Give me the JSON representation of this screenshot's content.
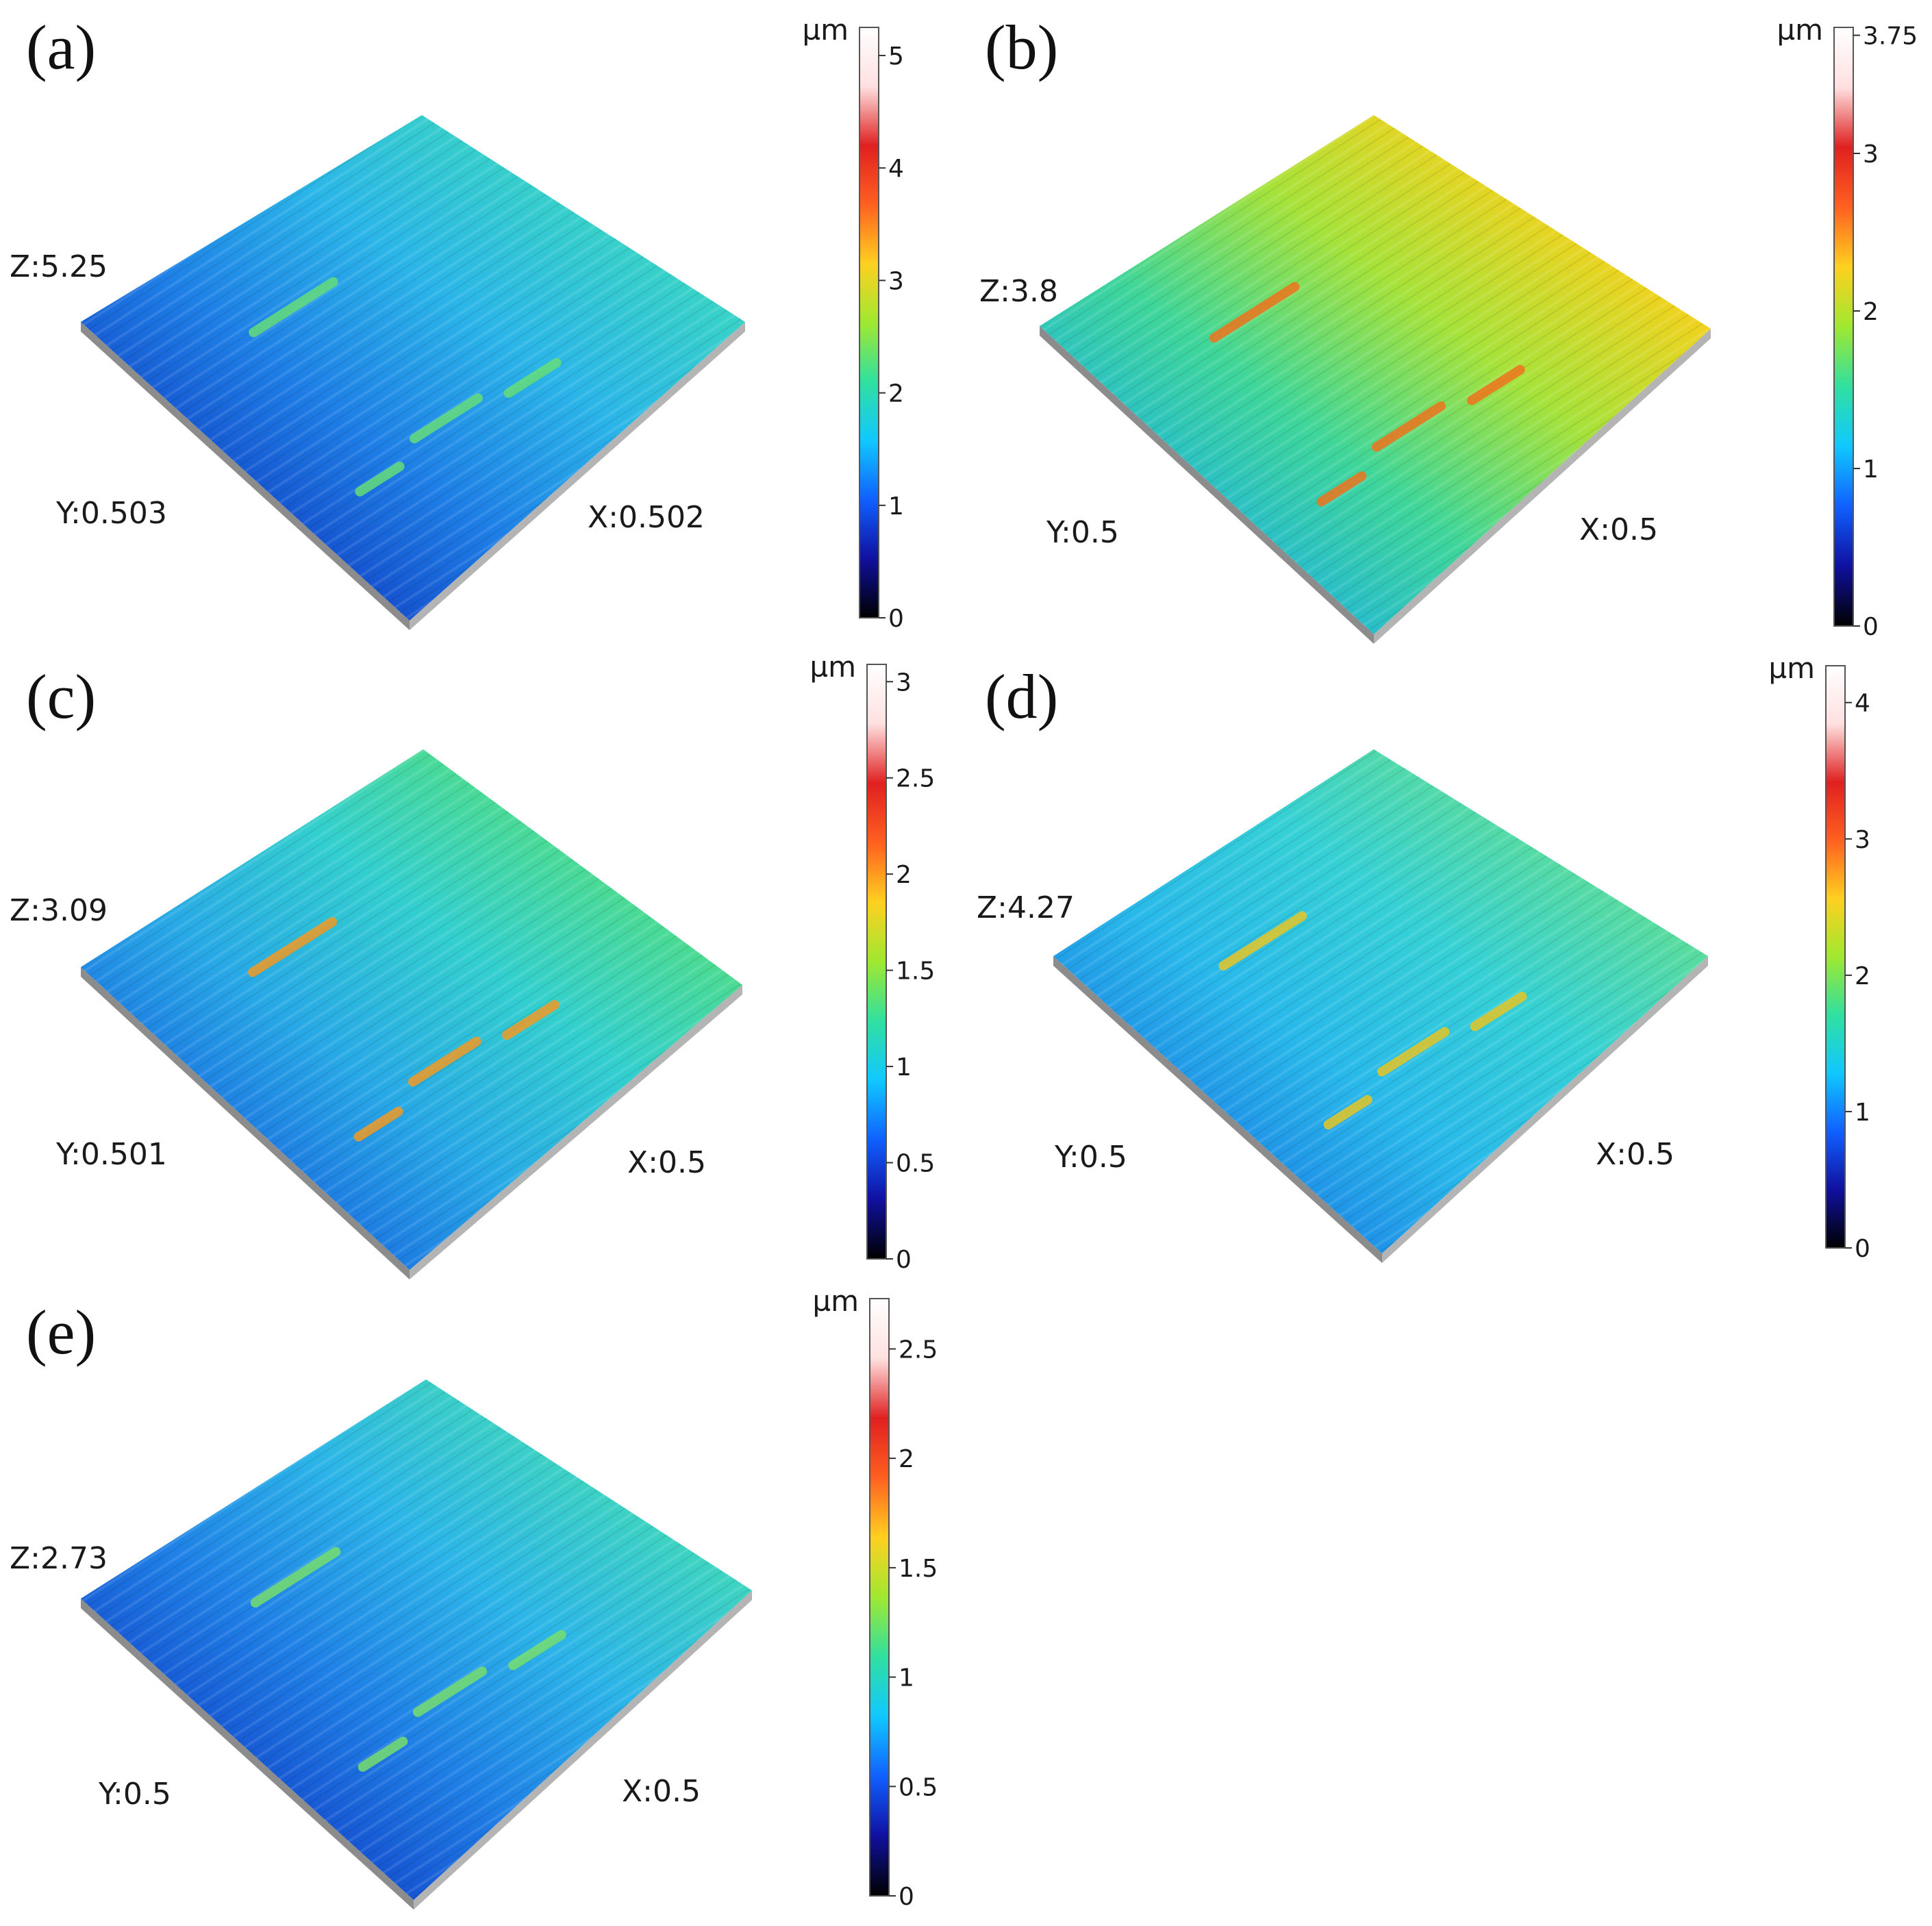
{
  "figure": {
    "panels": [
      {
        "key": "a",
        "letter": "(a)",
        "z_label": "Z:5.25",
        "y_label": "Y:0.503",
        "x_label": "X:0.502",
        "colorbar": {
          "unit": "µm",
          "max": 5.25,
          "ticks": [
            "5",
            "4",
            "3",
            "2",
            "1",
            "0"
          ],
          "tick_values": [
            5,
            4,
            3,
            2,
            1,
            0
          ]
        },
        "surface_palette": [
          "#0a2a9c",
          "#1246c8",
          "#1e7fe6",
          "#2bb6e8",
          "#39d3c6",
          "#66dd7a"
        ]
      },
      {
        "key": "b",
        "letter": "(b)",
        "z_label": "Z:3.8",
        "y_label": "Y:0.5",
        "x_label": "X:0.5",
        "colorbar": {
          "unit": "µm",
          "max": 3.8,
          "ticks": [
            "3.75",
            "3",
            "2",
            "1",
            "0"
          ],
          "tick_values": [
            3.75,
            3,
            2,
            1,
            0
          ]
        },
        "surface_palette": [
          "#1c7ad6",
          "#22b6d8",
          "#3fd69a",
          "#a6e23a",
          "#f2d21e",
          "#f0741e"
        ]
      },
      {
        "key": "c",
        "letter": "(c)",
        "z_label": "Z:3.09",
        "y_label": "Y:0.501",
        "x_label": "X:0.5",
        "colorbar": {
          "unit": "µm",
          "max": 3.09,
          "ticks": [
            "3",
            "2.5",
            "2",
            "1.5",
            "1",
            "0.5",
            "0"
          ],
          "tick_values": [
            3,
            2.5,
            2,
            1.5,
            1,
            0.5,
            0
          ]
        },
        "surface_palette": [
          "#0f3fb8",
          "#1a6ee0",
          "#28a9e6",
          "#33cfcf",
          "#4fdc8a",
          "#f09a24"
        ]
      },
      {
        "key": "d",
        "letter": "(d)",
        "z_label": "Z:4.27",
        "y_label": "Y:0.5",
        "x_label": "X:0.5",
        "colorbar": {
          "unit": "µm",
          "max": 4.27,
          "ticks": [
            "4",
            "3",
            "2",
            "1",
            "0"
          ],
          "tick_values": [
            4,
            3,
            2,
            1,
            0
          ]
        },
        "surface_palette": [
          "#1550cc",
          "#1d86e6",
          "#29b9ea",
          "#35d0d6",
          "#5bdc9c",
          "#e6c626"
        ]
      },
      {
        "key": "e",
        "letter": "(e)",
        "z_label": "Z:2.73",
        "y_label": "Y:0.5",
        "x_label": "X:0.5",
        "colorbar": {
          "unit": "µm",
          "max": 2.73,
          "ticks": [
            "2.5",
            "2",
            "1.5",
            "1",
            "0.5",
            "0"
          ],
          "tick_values": [
            2.5,
            2,
            1.5,
            1,
            0.5,
            0
          ]
        },
        "surface_palette": [
          "#0a2aa4",
          "#1348cc",
          "#1f80e6",
          "#2cb5e8",
          "#3fd4c0",
          "#77de6e"
        ]
      }
    ]
  },
  "colors": {
    "colorbar_stops": [
      "#000000",
      "#1010a0",
      "#1060ff",
      "#10c8ff",
      "#30e0a0",
      "#a0e830",
      "#ffd020",
      "#ff6020",
      "#e02020",
      "#ffe0e0",
      "#ffffff"
    ]
  }
}
